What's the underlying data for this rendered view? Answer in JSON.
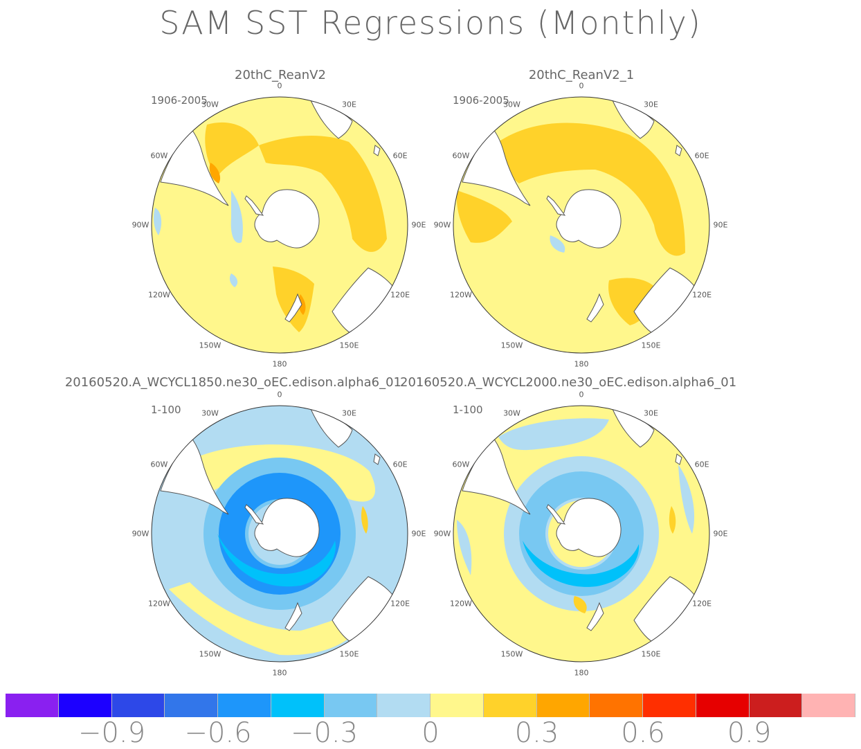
{
  "title": "SAM SST Regressions (Monthly)",
  "panels": [
    {
      "title": "20thC_ReanV2",
      "period": "1906-2005",
      "pattern": "obs1"
    },
    {
      "title": "20thC_ReanV2_1",
      "period": "1906-2005",
      "pattern": "obs2"
    },
    {
      "title": "20160520.A_WCYCL1850.ne30_oEC.edison.alpha6_01",
      "period": "1-100",
      "pattern": "model1"
    },
    {
      "title": "20160520.A_WCYCL2000.ne30_oEC.edison.alpha6_01",
      "period": "1-100",
      "pattern": "model2"
    }
  ],
  "longitude_labels": [
    "0",
    "30E",
    "60E",
    "90E",
    "120E",
    "150E",
    "180",
    "150W",
    "120W",
    "90W",
    "60W",
    "30W"
  ],
  "colorbar": {
    "colors": [
      "#8a20f0",
      "#1c00ff",
      "#2d48e8",
      "#3276ea",
      "#1e96fa",
      "#00c1fa",
      "#78c8f2",
      "#b2dcf2",
      "#fff78c",
      "#ffd22a",
      "#ffa600",
      "#ff7300",
      "#ff2f00",
      "#e60000",
      "#cc1e1e",
      "#ffb3b3"
    ],
    "labels": [
      "−0.9",
      "−0.6",
      "−0.3",
      "0",
      "0.3",
      "0.6",
      "0.9"
    ]
  },
  "palette": {
    "land": "#ffffff",
    "coast": "#555555",
    "yellow": "#fff78c",
    "gold": "#ffd22a",
    "orange": "#ffa600",
    "deep_orange": "#ff7300",
    "pale_blue": "#b2dcf2",
    "light_blue": "#78c8f2",
    "cyan": "#00c1fa",
    "blue": "#1e96fa"
  }
}
